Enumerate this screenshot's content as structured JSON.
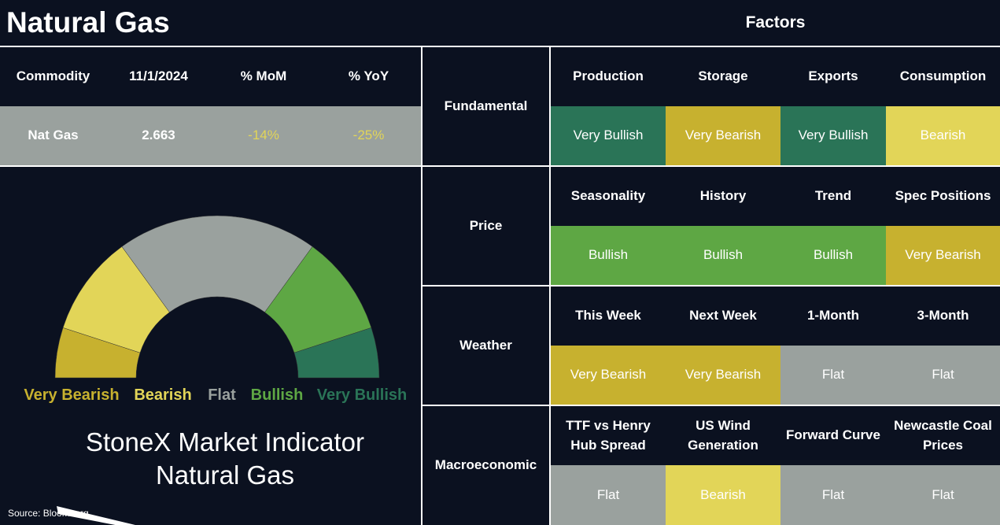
{
  "title": "Natural Gas",
  "factors_header": "Factors",
  "rating_colors": {
    "Very Bullish": "#2a7457",
    "Bullish": "#5ea744",
    "Flat": "#9aa19e",
    "Bearish": "#e2d558",
    "Very Bearish": "#c7b12f"
  },
  "commodity_table": {
    "columns": [
      "Commodity",
      "11/1/2024",
      "% MoM",
      "% YoY"
    ],
    "rows": [
      [
        "Nat Gas",
        "2.663",
        "-14%",
        "-25%"
      ]
    ],
    "highlight_color": "#e2d558"
  },
  "gauge": {
    "labels": [
      "Very Bearish",
      "Bearish",
      "Flat",
      "Bullish",
      "Very Bullish"
    ],
    "caption": [
      "StoneX Market Indicator",
      "Natural Gas"
    ]
  },
  "source": "Source: Bloomberg",
  "factor_groups": [
    {
      "name": "Fundamental",
      "factors": [
        {
          "name": "Production",
          "rating": "Very Bullish"
        },
        {
          "name": "Storage",
          "rating": "Very Bearish"
        },
        {
          "name": "Exports",
          "rating": "Very Bullish"
        },
        {
          "name": "Consumption",
          "rating": "Bearish"
        }
      ]
    },
    {
      "name": "Price",
      "factors": [
        {
          "name": "Seasonality",
          "rating": "Bullish"
        },
        {
          "name": "History",
          "rating": "Bullish"
        },
        {
          "name": "Trend",
          "rating": "Bullish"
        },
        {
          "name": "Spec Positions",
          "rating": "Very Bearish"
        }
      ]
    },
    {
      "name": "Weather",
      "factors": [
        {
          "name": "This Week",
          "rating": "Very Bearish"
        },
        {
          "name": "Next Week",
          "rating": "Very Bearish"
        },
        {
          "name": "1-Month",
          "rating": "Flat"
        },
        {
          "name": "3-Month",
          "rating": "Flat"
        }
      ]
    },
    {
      "name": "Macroeconomic",
      "factors": [
        {
          "name": "TTF vs Henry Hub Spread",
          "rating": "Flat"
        },
        {
          "name": "US Wind Generation",
          "rating": "Bearish"
        },
        {
          "name": "Forward Curve",
          "rating": "Flat"
        },
        {
          "name": "Newcastle Coal Prices",
          "rating": "Flat"
        }
      ]
    }
  ]
}
